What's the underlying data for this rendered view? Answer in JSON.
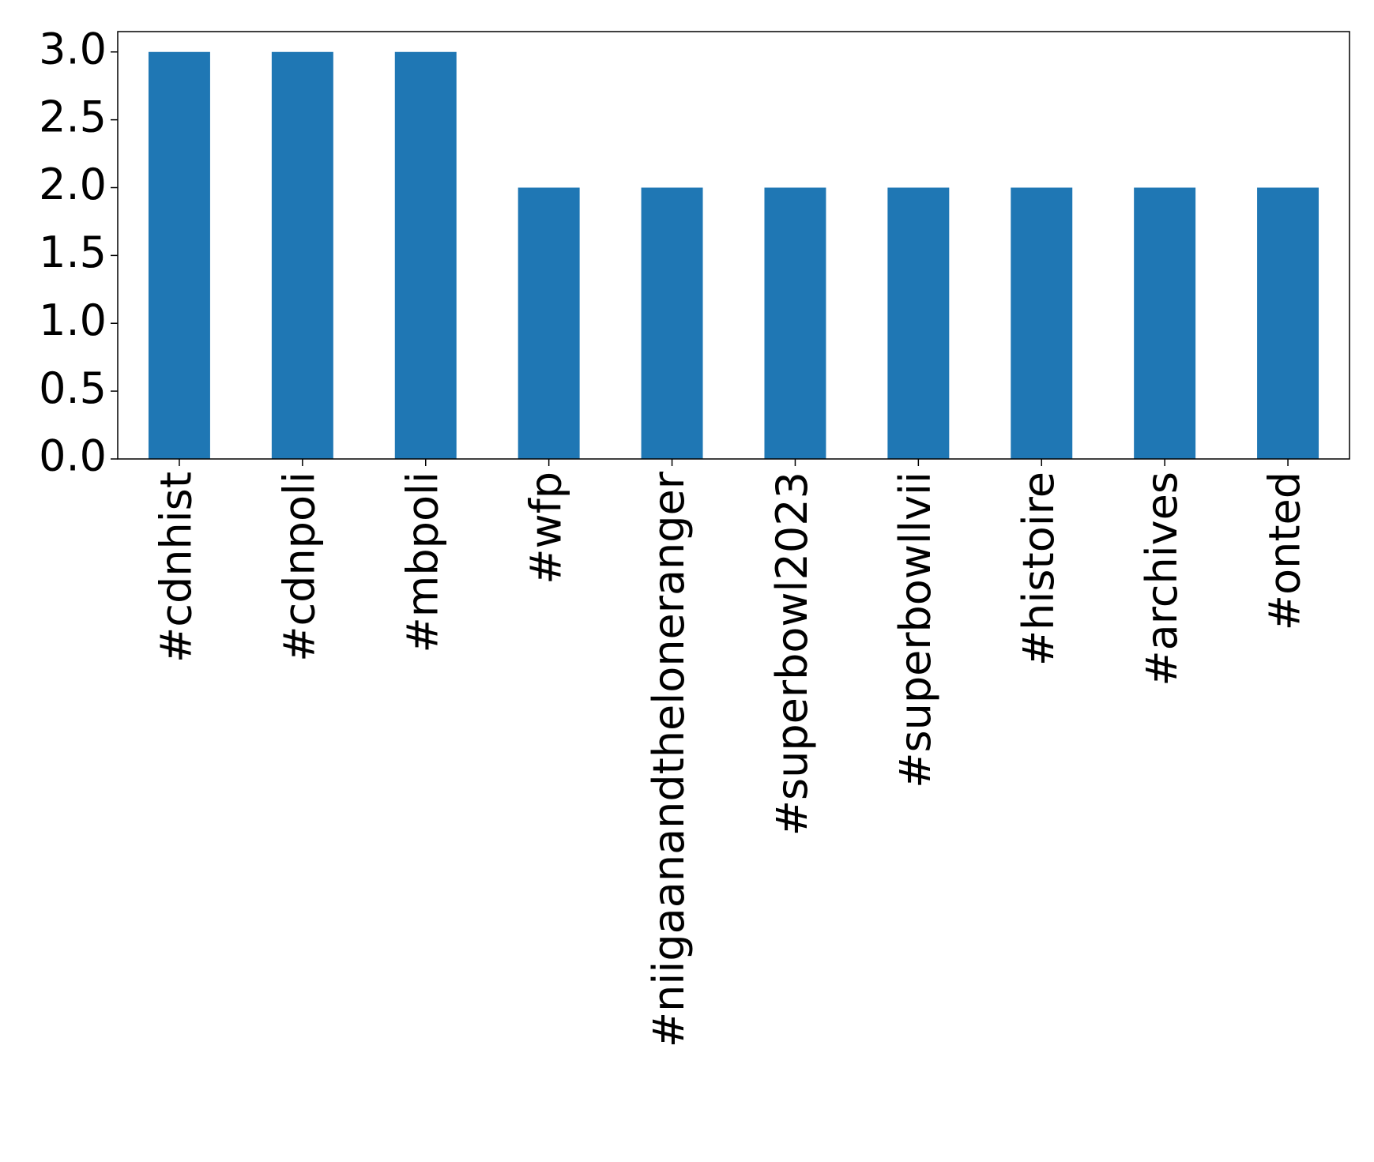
{
  "chart_data": {
    "type": "bar",
    "categories": [
      "#cdnhist",
      "#cdnpoli",
      "#mbpoli",
      "#wfp",
      "#niigaanandtheloneranger",
      "#superbowl2023",
      "#superbowllvii",
      "#histoire",
      "#archives",
      "#onted"
    ],
    "values": [
      3,
      3,
      3,
      2,
      2,
      2,
      2,
      2,
      2,
      2
    ],
    "color": "#1f77b4",
    "ylim": [
      0,
      3.15
    ],
    "yticks": [
      {
        "value": 0,
        "label": "0.0"
      },
      {
        "value": 0.5,
        "label": "0.5"
      },
      {
        "value": 1,
        "label": "1.0"
      },
      {
        "value": 1.5,
        "label": "1.5"
      },
      {
        "value": 2,
        "label": "2.0"
      },
      {
        "value": 2.5,
        "label": "2.5"
      },
      {
        "value": 3,
        "label": "3.0"
      }
    ],
    "grid": false
  }
}
